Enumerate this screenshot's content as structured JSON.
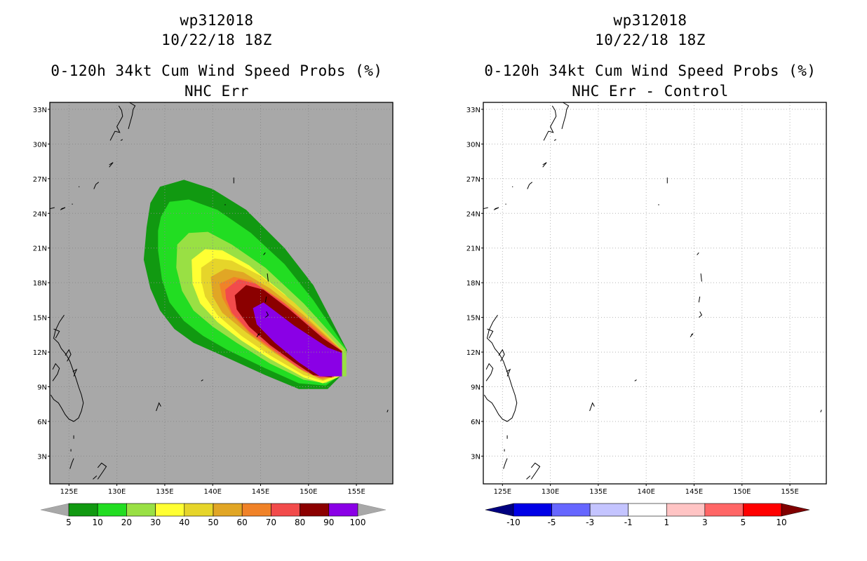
{
  "panels": [
    {
      "storm_id": "wp312018",
      "datetime": "10/22/18 18Z",
      "title": "0-120h 34kt Cum Wind Speed Probs (%)",
      "subtitle": "NHC Err",
      "background_color": "#a8a8a8",
      "colorbar": {
        "colors": [
          "#119911",
          "#22dd22",
          "#99e044",
          "#ffff33",
          "#e6d52a",
          "#e1a625",
          "#f08228",
          "#f24b4b",
          "#8b0000",
          "#8a00e6"
        ],
        "labels": [
          "5",
          "10",
          "20",
          "30",
          "40",
          "50",
          "60",
          "70",
          "80",
          "90",
          "100"
        ],
        "ends": [
          "#a8a8a8",
          "#a8a8a8"
        ]
      }
    },
    {
      "storm_id": "wp312018",
      "datetime": "10/22/18 18Z",
      "title": "0-120h 34kt Cum Wind Speed Probs (%)",
      "subtitle": "NHC Err - Control",
      "background_color": "#ffffff",
      "colorbar": {
        "colors": [
          "#0000e6",
          "#6666ff",
          "#c4c4ff",
          "#ffffff",
          "#ffc4c4",
          "#ff6666",
          "#ff0000"
        ],
        "labels": [
          "-10",
          "-5",
          "-3",
          "-1",
          "1",
          "3",
          "5",
          "10"
        ],
        "ends": [
          "#000080",
          "#800000"
        ]
      }
    }
  ],
  "axes": {
    "lon_ticks": [
      "125E",
      "130E",
      "135E",
      "140E",
      "145E",
      "150E",
      "155E"
    ],
    "lat_ticks": [
      "3N",
      "6N",
      "9N",
      "12N",
      "15N",
      "18N",
      "21N",
      "24N",
      "27N",
      "30N",
      "33N"
    ],
    "lon_values": [
      125,
      130,
      135,
      140,
      145,
      150,
      155
    ],
    "lat_values": [
      3,
      6,
      9,
      12,
      15,
      18,
      21,
      24,
      27,
      30,
      33
    ],
    "lon_range": [
      123.0,
      158.8
    ],
    "lat_range": [
      0.6,
      33.6
    ]
  },
  "probability_contours": [
    {
      "level": "5",
      "color": "#119911",
      "polygon": [
        [
          133.5,
          24.9
        ],
        [
          134.5,
          26.3
        ],
        [
          137.0,
          26.9
        ],
        [
          140.0,
          26.1
        ],
        [
          143.5,
          24.3
        ],
        [
          147.5,
          21.0
        ],
        [
          150.5,
          17.8
        ],
        [
          154.0,
          12.2
        ],
        [
          153.8,
          10.3
        ],
        [
          152.0,
          8.8
        ],
        [
          149.0,
          8.8
        ],
        [
          145.5,
          10.0
        ],
        [
          141.0,
          11.7
        ],
        [
          138.0,
          12.8
        ],
        [
          136.0,
          14.0
        ],
        [
          134.5,
          15.6
        ],
        [
          133.5,
          17.5
        ],
        [
          132.8,
          20.0
        ],
        [
          133.1,
          22.8
        ]
      ]
    },
    {
      "level": "10",
      "color": "#22dd22",
      "polygon": [
        [
          134.6,
          23.7
        ],
        [
          135.5,
          25.0
        ],
        [
          137.5,
          25.2
        ],
        [
          140.5,
          24.3
        ],
        [
          144.0,
          22.3
        ],
        [
          147.5,
          19.6
        ],
        [
          150.5,
          16.5
        ],
        [
          153.9,
          12.3
        ],
        [
          153.6,
          10.2
        ],
        [
          151.8,
          9.1
        ],
        [
          149.0,
          9.3
        ],
        [
          145.5,
          10.6
        ],
        [
          141.5,
          12.2
        ],
        [
          139.0,
          13.4
        ],
        [
          137.0,
          14.7
        ],
        [
          135.5,
          16.3
        ],
        [
          134.7,
          18.3
        ],
        [
          134.3,
          20.8
        ],
        [
          134.3,
          22.5
        ]
      ]
    },
    {
      "level": "20",
      "color": "#99e044",
      "polygon": [
        [
          136.3,
          21.3
        ],
        [
          137.5,
          22.3
        ],
        [
          139.5,
          22.4
        ],
        [
          142.0,
          21.3
        ],
        [
          145.5,
          19.3
        ],
        [
          149.5,
          16.2
        ],
        [
          153.9,
          12.2
        ],
        [
          153.5,
          10.0
        ],
        [
          151.8,
          9.3
        ],
        [
          149.5,
          9.6
        ],
        [
          146.0,
          11.0
        ],
        [
          142.5,
          12.8
        ],
        [
          140.0,
          14.2
        ],
        [
          138.0,
          15.6
        ],
        [
          136.8,
          17.3
        ],
        [
          136.2,
          19.3
        ]
      ]
    },
    {
      "level": "30",
      "color": "#ffff33",
      "polygon": [
        [
          137.8,
          20.0
        ],
        [
          139.2,
          20.9
        ],
        [
          141.0,
          20.8
        ],
        [
          143.8,
          19.5
        ],
        [
          147.5,
          17.0
        ],
        [
          151.5,
          13.6
        ],
        [
          153.8,
          12.0
        ],
        [
          153.3,
          9.9
        ],
        [
          151.5,
          9.3
        ],
        [
          149.5,
          9.8
        ],
        [
          146.0,
          11.4
        ],
        [
          143.0,
          13.0
        ],
        [
          140.5,
          14.6
        ],
        [
          138.7,
          16.2
        ],
        [
          137.9,
          17.9
        ]
      ]
    },
    {
      "level": "40",
      "color": "#e6d52a",
      "polygon": [
        [
          138.8,
          19.3
        ],
        [
          140.2,
          20.1
        ],
        [
          142.0,
          19.9
        ],
        [
          145.0,
          18.6
        ],
        [
          148.5,
          16.3
        ],
        [
          152.0,
          13.5
        ],
        [
          153.8,
          11.9
        ],
        [
          153.1,
          10.0
        ],
        [
          151.5,
          9.5
        ],
        [
          149.5,
          10.0
        ],
        [
          146.0,
          11.7
        ],
        [
          143.0,
          13.4
        ],
        [
          140.5,
          15.2
        ],
        [
          139.2,
          16.8
        ],
        [
          138.8,
          18.2
        ]
      ]
    },
    {
      "level": "50",
      "color": "#e1a625",
      "polygon": [
        [
          139.8,
          18.5
        ],
        [
          141.3,
          19.2
        ],
        [
          143.2,
          18.9
        ],
        [
          146.0,
          17.5
        ],
        [
          149.5,
          15.2
        ],
        [
          153.8,
          11.9
        ],
        [
          152.9,
          10.0
        ],
        [
          151.5,
          9.6
        ],
        [
          149.5,
          10.3
        ],
        [
          146.5,
          11.9
        ],
        [
          143.5,
          13.7
        ],
        [
          141.0,
          15.4
        ],
        [
          140.0,
          16.8
        ]
      ]
    },
    {
      "level": "60",
      "color": "#f08228",
      "polygon": [
        [
          140.7,
          17.9
        ],
        [
          142.2,
          18.5
        ],
        [
          144.0,
          18.2
        ],
        [
          147.0,
          16.6
        ],
        [
          150.5,
          14.3
        ],
        [
          153.8,
          11.9
        ],
        [
          152.7,
          10.0
        ],
        [
          151.3,
          9.7
        ],
        [
          149.5,
          10.4
        ],
        [
          146.8,
          11.8
        ],
        [
          144.0,
          13.5
        ],
        [
          142.0,
          15.2
        ],
        [
          141.0,
          16.7
        ]
      ]
    },
    {
      "level": "70",
      "color": "#f24b4b",
      "polygon": [
        [
          141.3,
          17.4
        ],
        [
          142.7,
          18.3
        ],
        [
          144.5,
          17.9
        ],
        [
          147.5,
          16.2
        ],
        [
          151.0,
          13.7
        ],
        [
          153.8,
          11.9
        ],
        [
          152.6,
          9.8
        ],
        [
          151.0,
          9.8
        ],
        [
          149.0,
          10.6
        ],
        [
          146.5,
          12.1
        ],
        [
          143.8,
          13.8
        ],
        [
          142.0,
          15.4
        ],
        [
          141.4,
          16.6
        ]
      ]
    },
    {
      "level": "80",
      "color": "#8b0000",
      "polygon": [
        [
          142.3,
          16.9
        ],
        [
          143.5,
          17.8
        ],
        [
          145.3,
          17.4
        ],
        [
          148.0,
          15.7
        ],
        [
          151.5,
          13.2
        ],
        [
          153.8,
          11.9
        ],
        [
          152.4,
          9.8
        ],
        [
          150.5,
          10.0
        ],
        [
          148.5,
          11.1
        ],
        [
          146.0,
          12.6
        ],
        [
          143.8,
          14.2
        ],
        [
          142.5,
          15.7
        ]
      ]
    },
    {
      "level": "90",
      "color": "#8a00e6",
      "polygon": [
        [
          144.2,
          15.8
        ],
        [
          145.3,
          16.3
        ],
        [
          148.5,
          14.3
        ],
        [
          152.0,
          12.4
        ],
        [
          153.6,
          11.9
        ],
        [
          153.5,
          9.9
        ],
        [
          151.2,
          9.9
        ],
        [
          149.0,
          11.1
        ],
        [
          146.5,
          12.8
        ],
        [
          144.6,
          14.4
        ]
      ]
    },
    {
      "level": "100",
      "color": "#99e044",
      "polygon": [
        [
          153.5,
          12.1
        ],
        [
          153.95,
          12.1
        ],
        [
          153.95,
          9.9
        ],
        [
          153.5,
          9.9
        ]
      ]
    }
  ],
  "coastlines": [
    [
      [
        124.5,
        15.2
      ],
      [
        124.0,
        14.6
      ],
      [
        123.6,
        13.9
      ],
      [
        123.4,
        13.2
      ],
      [
        123.9,
        12.8
      ],
      [
        124.2,
        12.3
      ],
      [
        124.7,
        11.8
      ],
      [
        125.1,
        11.2
      ],
      [
        125.4,
        10.5
      ],
      [
        125.7,
        9.8
      ],
      [
        126.0,
        9.0
      ],
      [
        126.3,
        8.3
      ],
      [
        126.5,
        7.6
      ],
      [
        126.3,
        6.9
      ],
      [
        126.0,
        6.3
      ],
      [
        125.5,
        6.0
      ],
      [
        125.0,
        6.2
      ],
      [
        124.6,
        6.6
      ],
      [
        124.2,
        7.2
      ],
      [
        123.9,
        7.6
      ],
      [
        123.4,
        7.9
      ],
      [
        123.1,
        8.3
      ]
    ],
    [
      [
        123.3,
        9.5
      ],
      [
        123.8,
        10.1
      ],
      [
        124.0,
        10.6
      ],
      [
        123.6,
        11.0
      ],
      [
        123.3,
        10.5
      ]
    ],
    [
      [
        123.6,
        13.2
      ],
      [
        124.0,
        13.8
      ],
      [
        123.4,
        14.0
      ]
    ],
    [
      [
        125.5,
        9.9
      ],
      [
        125.8,
        10.5
      ],
      [
        125.4,
        10.3
      ]
    ],
    [
      [
        124.8,
        11.2
      ],
      [
        125.2,
        11.8
      ],
      [
        125.0,
        12.2
      ],
      [
        124.6,
        11.7
      ]
    ],
    [
      [
        125.1,
        1.9
      ],
      [
        125.3,
        2.4
      ],
      [
        125.5,
        2.8
      ]
    ],
    [
      [
        125.2,
        3.4
      ],
      [
        125.2,
        3.6
      ]
    ],
    [
      [
        125.5,
        4.5
      ],
      [
        125.5,
        4.8
      ]
    ],
    [
      [
        128.0,
        1.0
      ],
      [
        128.5,
        1.6
      ],
      [
        128.9,
        2.1
      ],
      [
        128.4,
        2.4
      ],
      [
        128.0,
        2.0
      ]
    ],
    [
      [
        127.5,
        1.0
      ],
      [
        127.9,
        1.3
      ]
    ],
    [
      [
        129.3,
        30.3
      ],
      [
        129.8,
        31.1
      ],
      [
        130.3,
        31.0
      ],
      [
        130.0,
        31.5
      ],
      [
        130.6,
        32.4
      ],
      [
        130.5,
        32.9
      ],
      [
        130.2,
        33.3
      ]
    ],
    [
      [
        131.2,
        31.3
      ],
      [
        131.4,
        31.9
      ],
      [
        131.6,
        32.5
      ],
      [
        131.7,
        33.0
      ],
      [
        131.9,
        33.3
      ],
      [
        131.3,
        33.6
      ]
    ],
    [
      [
        130.4,
        30.3
      ],
      [
        130.6,
        30.4
      ]
    ],
    [
      [
        129.2,
        28.0
      ],
      [
        129.6,
        28.4
      ],
      [
        129.2,
        28.2
      ]
    ],
    [
      [
        127.6,
        26.1
      ],
      [
        127.8,
        26.5
      ],
      [
        128.1,
        26.7
      ]
    ],
    [
      [
        126.0,
        26.3
      ],
      [
        126.1,
        26.3
      ]
    ],
    [
      [
        124.1,
        24.3
      ],
      [
        124.6,
        24.5
      ],
      [
        124.2,
        24.4
      ]
    ],
    [
      [
        123.0,
        24.4
      ],
      [
        123.5,
        24.5
      ]
    ],
    [
      [
        125.3,
        24.8
      ],
      [
        125.4,
        24.8
      ]
    ],
    [
      [
        138.8,
        9.5
      ],
      [
        139.0,
        9.6
      ]
    ],
    [
      [
        134.6,
        7.3
      ],
      [
        134.4,
        7.6
      ],
      [
        134.1,
        6.9
      ]
    ],
    [
      [
        158.2,
        6.8
      ],
      [
        158.3,
        7.0
      ]
    ],
    [
      [
        145.3,
        20.4
      ],
      [
        145.5,
        20.6
      ]
    ],
    [
      [
        145.7,
        18.8
      ],
      [
        145.8,
        18.1
      ]
    ],
    [
      [
        145.5,
        16.3
      ],
      [
        145.6,
        16.8
      ]
    ],
    [
      [
        145.5,
        15.0
      ],
      [
        145.8,
        15.2
      ],
      [
        145.6,
        15.5
      ]
    ],
    [
      [
        144.6,
        13.3
      ],
      [
        144.9,
        13.6
      ],
      [
        144.7,
        13.5
      ]
    ],
    [
      [
        142.2,
        26.6
      ],
      [
        142.2,
        27.1
      ]
    ],
    [
      [
        141.3,
        24.8
      ],
      [
        141.3,
        24.7
      ]
    ]
  ]
}
